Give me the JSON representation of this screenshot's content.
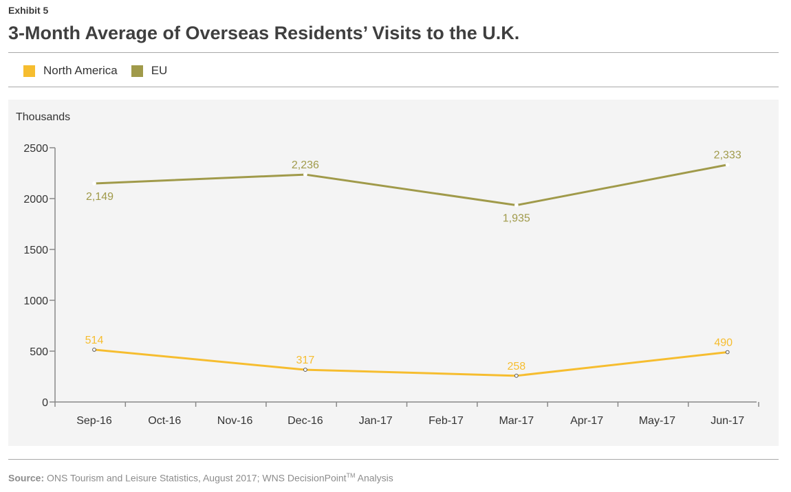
{
  "header": {
    "exhibit": "Exhibit 5",
    "title": "3-Month Average of Overseas Residents’ Visits to the U.K."
  },
  "legend": [
    {
      "label": "North America",
      "color": "#f6bd2f"
    },
    {
      "label": "EU",
      "color": "#a09a4a"
    }
  ],
  "footer": {
    "source_label": "Source:",
    "source_text": "ONS Tourism and Leisure Statistics, August 2017; WNS DecisionPoint",
    "source_sup": "TM",
    "source_tail": "Analysis"
  },
  "chart_data": {
    "type": "line",
    "ylabel": "Thousands",
    "xlabel": "",
    "ylim": [
      0,
      2500
    ],
    "yticks": [
      0,
      500,
      1000,
      1500,
      2000,
      2500
    ],
    "grid": false,
    "legend_position": "top-left",
    "categories": [
      "Sep-16",
      "Oct-16",
      "Nov-16",
      "Dec-16",
      "Jan-17",
      "Feb-17",
      "Mar-17",
      "Apr-17",
      "May-17",
      "Jun-17"
    ],
    "series": [
      {
        "name": "North America",
        "color": "#f6bd2f",
        "points": [
          {
            "x": "Sep-16",
            "y": 514,
            "label": "514"
          },
          {
            "x": "Dec-16",
            "y": 317,
            "label": "317"
          },
          {
            "x": "Mar-17",
            "y": 258,
            "label": "258"
          },
          {
            "x": "Jun-17",
            "y": 490,
            "label": "490"
          }
        ]
      },
      {
        "name": "EU",
        "color": "#a09a4a",
        "points": [
          {
            "x": "Sep-16",
            "y": 2149,
            "label": "2,149"
          },
          {
            "x": "Dec-16",
            "y": 2236,
            "label": "2,236"
          },
          {
            "x": "Mar-17",
            "y": 1935,
            "label": "1,935"
          },
          {
            "x": "Jun-17",
            "y": 2333,
            "label": "2,333"
          }
        ]
      }
    ]
  }
}
